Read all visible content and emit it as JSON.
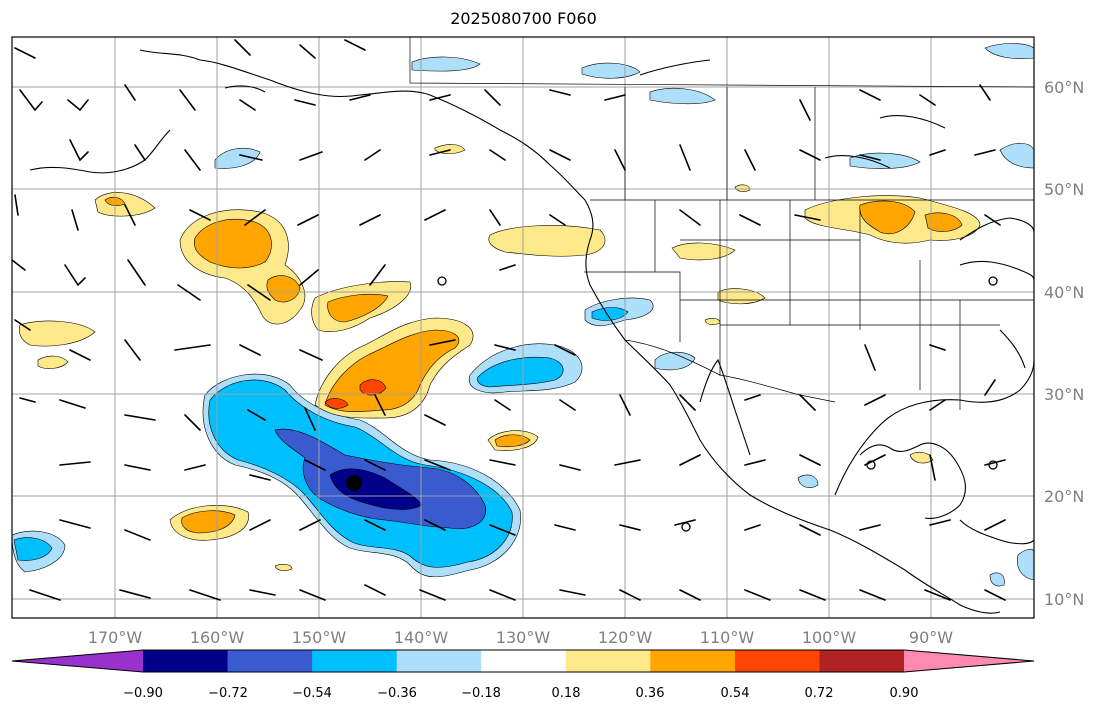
{
  "title": "2025080700 F060",
  "longitude_labels": [
    "170°W",
    "160°W",
    "150°W",
    "140°W",
    "130°W",
    "120°W",
    "110°W",
    "100°W",
    "90°W"
  ],
  "latitude_labels": [
    "60°N",
    "50°N",
    "40°N",
    "30°N",
    "20°N",
    "10°N"
  ],
  "colorbar": {
    "colors": [
      "#9932cc",
      "#00008b",
      "#3a5bd0",
      "#00bfff",
      "#aedffa",
      "#ffffff",
      "#fde88a",
      "#ffa500",
      "#ff4500",
      "#b22222",
      "#ff89b0"
    ],
    "tick_labels": [
      "−0.90",
      "−0.72",
      "−0.54",
      "−0.36",
      "−0.18",
      "0.18",
      "0.36",
      "0.54",
      "0.72",
      "0.90"
    ]
  },
  "map_colors": {
    "coastline": "#000000",
    "grid": "#a0a0a0",
    "contour_line": "#000000"
  }
}
